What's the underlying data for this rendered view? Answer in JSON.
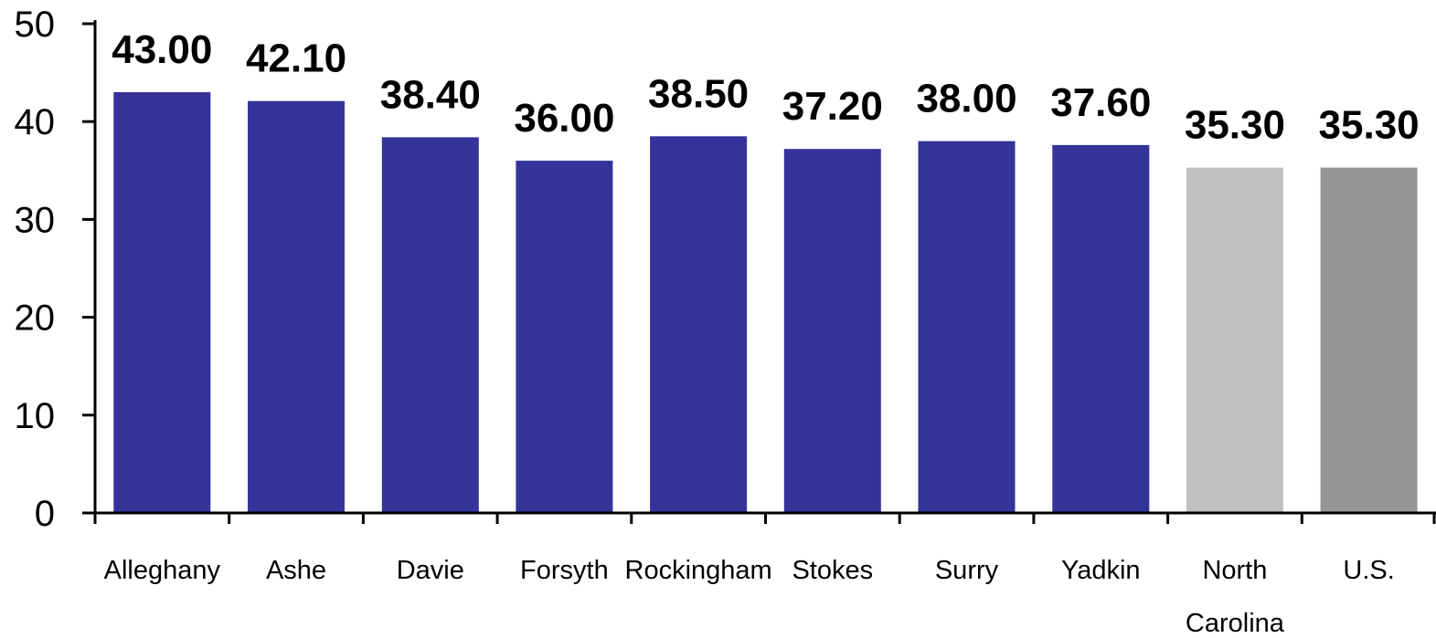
{
  "chart_data": {
    "type": "bar",
    "title": "",
    "xlabel": "",
    "ylabel": "",
    "ylim": [
      0,
      50
    ],
    "yticks": [
      0,
      10,
      20,
      30,
      40,
      50
    ],
    "grid": false,
    "categories": [
      "Alleghany",
      "Ashe",
      "Davie",
      "Forsyth",
      "Rockingham",
      "Stokes",
      "Surry",
      "Yadkin",
      "North Carolina",
      "U.S."
    ],
    "category_lines": [
      [
        "Alleghany"
      ],
      [
        "Ashe"
      ],
      [
        "Davie"
      ],
      [
        "Forsyth"
      ],
      [
        "Rockingham"
      ],
      [
        "Stokes"
      ],
      [
        "Surry"
      ],
      [
        "Yadkin"
      ],
      [
        "North",
        "Carolina"
      ],
      [
        "U.S."
      ]
    ],
    "values": [
      43.0,
      42.1,
      38.4,
      36.0,
      38.5,
      37.2,
      38.0,
      37.6,
      35.3,
      35.3
    ],
    "data_labels": [
      "43.00",
      "42.10",
      "38.40",
      "36.00",
      "38.50",
      "37.20",
      "38.00",
      "37.60",
      "35.30",
      "35.30"
    ],
    "bar_colors": [
      "#333399",
      "#333399",
      "#333399",
      "#333399",
      "#333399",
      "#333399",
      "#333399",
      "#333399",
      "#C0C0C0",
      "#969696"
    ]
  }
}
